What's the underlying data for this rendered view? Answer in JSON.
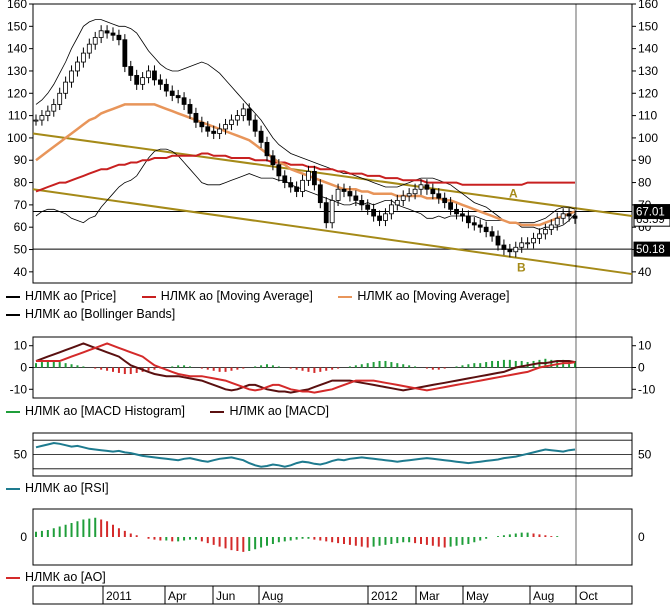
{
  "chart_data": [
    {
      "type": "candlestick",
      "panel": "price",
      "ylim": [
        35,
        160
      ],
      "ticks": [
        40,
        50,
        60,
        70,
        80,
        90,
        100,
        110,
        120,
        130,
        140,
        150,
        160
      ],
      "tick_labels": [
        "40",
        "50",
        "60",
        "70",
        "80",
        "90",
        "100",
        "110",
        "120",
        "130",
        "140",
        "150",
        "160"
      ],
      "last_values": {
        "price": "63.59",
        "ma_fast_label": "67.01",
        "level": "50.18"
      },
      "horizontal_levels": [
        67.01,
        50.18
      ],
      "trendline_annotations": [
        {
          "label": "A",
          "color": "#a58a18"
        },
        {
          "label": "B",
          "color": "#a58a18"
        }
      ],
      "series": [
        {
          "name": "НЛМК ао [Price]",
          "color": "#000000",
          "values": [
            108,
            110,
            112,
            115,
            120,
            125,
            130,
            134,
            138,
            142,
            145,
            148,
            147,
            146,
            144,
            132,
            128,
            124,
            127,
            130,
            126,
            124,
            121,
            119,
            118,
            115,
            111,
            107,
            105,
            103,
            102,
            104,
            106,
            108,
            110,
            113,
            108,
            103,
            98,
            92,
            88,
            83,
            80,
            78,
            76,
            81,
            85,
            79,
            71,
            62,
            72,
            77,
            76,
            74,
            72,
            70,
            68,
            65,
            63,
            66,
            70,
            72,
            74,
            75,
            77,
            79,
            77,
            75,
            73,
            71,
            68,
            66,
            65,
            62,
            61,
            60,
            58,
            56,
            52,
            50,
            49,
            51,
            53,
            53,
            55,
            57,
            59,
            61,
            64,
            66,
            65,
            64
          ]
        },
        {
          "name": "НЛМК ао [Moving Average]",
          "color": "#c82020",
          "values": [
            76,
            77,
            78,
            79,
            80,
            80,
            81,
            82,
            83,
            84,
            85,
            86,
            86,
            87,
            88,
            88,
            89,
            89,
            90,
            90,
            91,
            91,
            91,
            92,
            92,
            92,
            92,
            92,
            93,
            93,
            92,
            92,
            92,
            91,
            91,
            91,
            91,
            90,
            90,
            90,
            89,
            89,
            89,
            88,
            88,
            88,
            87,
            87,
            86,
            86,
            86,
            85,
            85,
            84,
            84,
            84,
            83,
            83,
            83,
            82,
            82,
            82,
            81,
            81,
            81,
            81,
            80,
            80,
            80,
            80,
            80,
            80,
            79,
            79,
            79,
            79,
            79,
            79,
            79,
            79,
            79,
            79,
            79,
            80,
            80,
            80,
            80,
            80,
            80,
            80,
            80,
            80
          ]
        },
        {
          "name": "НЛМК ао [Moving Average]",
          "color": "#e8955a",
          "values": [
            90,
            92,
            94,
            96,
            98,
            100,
            102,
            104,
            106,
            108,
            109,
            111,
            112,
            113,
            114,
            115,
            115,
            115,
            115,
            115,
            115,
            114,
            113,
            112,
            111,
            110,
            109,
            108,
            107,
            106,
            105,
            104,
            103,
            102,
            101,
            100,
            99,
            97,
            95,
            93,
            91,
            89,
            88,
            86,
            85,
            84,
            83,
            82,
            81,
            80,
            79,
            78,
            77,
            77,
            77,
            76,
            76,
            75,
            75,
            75,
            75,
            74,
            74,
            74,
            74,
            74,
            73,
            73,
            73,
            72,
            72,
            71,
            70,
            69,
            68,
            67,
            66,
            65,
            64,
            63,
            62,
            62,
            61,
            61,
            61,
            61,
            62,
            63,
            64,
            65,
            66,
            67
          ]
        },
        {
          "name": "НЛМК ао [Bollinger Bands]",
          "color": "#000000",
          "values": [
            115,
            117,
            120,
            124,
            129,
            134,
            140,
            145,
            150,
            152,
            153,
            153,
            152,
            151,
            150,
            150,
            149,
            147,
            143,
            139,
            136,
            133,
            131,
            130,
            130,
            131,
            132,
            133,
            134,
            133,
            131,
            129,
            126,
            123,
            120,
            117,
            114,
            111,
            108,
            104,
            100,
            97,
            95,
            93,
            92,
            91,
            90,
            89,
            88,
            87,
            86,
            85,
            84,
            84,
            83,
            82,
            81,
            80,
            79,
            78,
            78,
            78,
            79,
            80,
            81,
            82,
            82,
            82,
            81,
            80,
            79,
            77,
            75,
            73,
            71,
            70,
            69,
            67,
            65,
            63,
            62,
            62,
            62,
            62,
            62,
            63,
            64,
            66,
            68,
            69,
            69,
            68
          ]
        }
      ]
    },
    {
      "type": "bar+line",
      "panel": "macd",
      "ylim": [
        -14,
        14
      ],
      "tick_labels": [
        "10",
        "0",
        "-10"
      ],
      "series": [
        {
          "name": "НЛМК ао [MACD Histogram]",
          "color": "#1f9e3a",
          "neg_color": "#d42a2a",
          "values": [
            2,
            2.5,
            3,
            3,
            2.5,
            2,
            1.5,
            1,
            0.5,
            0,
            -0.5,
            -1,
            -1.5,
            -2,
            -2.5,
            -3,
            -3,
            -2.5,
            -2,
            -1.5,
            -1,
            -0.5,
            0,
            0.5,
            1,
            1,
            0.5,
            0,
            -0.5,
            -1,
            -1.5,
            -2,
            -2,
            -1.5,
            -1,
            -0.5,
            0,
            0.5,
            1,
            1.5,
            1,
            0.5,
            0,
            -0.5,
            -1,
            -1.5,
            -2,
            -2.5,
            -2,
            -1.5,
            -1,
            -0.5,
            0,
            0.5,
            1,
            1.5,
            2,
            2.5,
            3,
            3,
            2.5,
            2,
            1.5,
            1,
            0.5,
            0,
            -0.5,
            -1,
            -1,
            -0.5,
            0,
            0.5,
            1,
            1.5,
            2,
            2,
            2.5,
            3,
            3,
            3.5,
            3.5,
            3,
            3,
            2.5,
            3,
            3.5,
            4,
            3.5,
            3,
            3.5,
            3,
            3
          ]
        },
        {
          "name": "НЛМК ао [MACD]",
          "color": "#5a1010",
          "values": [
            3,
            4,
            5,
            6,
            7,
            8,
            9,
            10,
            11,
            10,
            9,
            8,
            7,
            6,
            5,
            3,
            1,
            0,
            -1,
            -2,
            -3,
            -3.5,
            -4,
            -4,
            -4,
            -4.5,
            -5,
            -5.5,
            -6,
            -7,
            -8,
            -9,
            -10,
            -10.5,
            -10,
            -9,
            -8,
            -8,
            -9,
            -10,
            -10.5,
            -11,
            -11,
            -11.5,
            -11,
            -10.5,
            -10,
            -9,
            -8,
            -7,
            -6,
            -6,
            -6,
            -6,
            -6.5,
            -7,
            -7.5,
            -8,
            -8.5,
            -9,
            -9.5,
            -10,
            -10.5,
            -10,
            -9.5,
            -9,
            -8.5,
            -8,
            -7.5,
            -7,
            -6.5,
            -6,
            -5.5,
            -5,
            -4.5,
            -4,
            -3.5,
            -3,
            -2.5,
            -2,
            -1,
            0,
            0.5,
            1,
            1.5,
            2,
            2,
            2.5,
            3,
            3,
            3,
            2.5
          ]
        }
      ]
    },
    {
      "type": "line",
      "panel": "rsi",
      "ylim": [
        20,
        80
      ],
      "tick_labels": [
        "50"
      ],
      "series": [
        {
          "name": "НЛМК ао [RSI]",
          "color": "#1e7b8f",
          "values": [
            60,
            62,
            64,
            66,
            65,
            63,
            61,
            62,
            60,
            58,
            57,
            56,
            55,
            54,
            55,
            53,
            52,
            50,
            48,
            47,
            46,
            45,
            44,
            43,
            42,
            44,
            45,
            43,
            41,
            40,
            42,
            44,
            45,
            46,
            44,
            42,
            38,
            35,
            33,
            34,
            36,
            35,
            33,
            35,
            38,
            40,
            39,
            37,
            36,
            38,
            41,
            43,
            42,
            44,
            45,
            46,
            45,
            44,
            43,
            42,
            41,
            40,
            41,
            42,
            43,
            44,
            45,
            44,
            43,
            42,
            41,
            40,
            39,
            38,
            39,
            40,
            41,
            42,
            43,
            45,
            46,
            47,
            49,
            51,
            53,
            55,
            57,
            56,
            55,
            54,
            56,
            57
          ]
        }
      ]
    },
    {
      "type": "bar",
      "panel": "ao",
      "ylim": [
        -32,
        32
      ],
      "tick_labels": [
        "0"
      ],
      "series": [
        {
          "name": "НЛМК ао [AO]",
          "color": "#1f9e3a",
          "neg_color": "#d42a2a",
          "values": [
            6,
            7,
            8,
            10,
            12,
            14,
            16,
            18,
            20,
            21,
            22,
            20,
            18,
            14,
            10,
            7,
            4,
            2,
            0,
            -2,
            -3,
            -4,
            -4,
            -5,
            -5,
            -4,
            -3,
            -3,
            -5,
            -7,
            -9,
            -11,
            -13,
            -15,
            -16,
            -17,
            -16,
            -14,
            -12,
            -10,
            -8,
            -6,
            -5,
            -4,
            -3,
            -2,
            -2,
            -3,
            -4,
            -5,
            -6,
            -7,
            -8,
            -9,
            -10,
            -11,
            -12,
            -11,
            -10,
            -9,
            -8,
            -7,
            -6,
            -6,
            -7,
            -8,
            -9,
            -10,
            -11,
            -12,
            -11,
            -10,
            -9,
            -8,
            -6,
            -4,
            -2,
            0,
            1,
            2,
            3,
            4,
            5,
            5,
            4,
            3,
            2,
            1,
            1,
            0,
            0,
            0
          ]
        }
      ]
    }
  ],
  "time_axis": {
    "labels": [
      "2011",
      "Apr",
      "Jun",
      "Aug",
      "2012",
      "Mar",
      "May",
      "Aug",
      "Oct"
    ]
  },
  "legends": {
    "price": [
      "НЛМК ао [Price]",
      "НЛМК ао [Moving Average]",
      "НЛМК ао [Moving Average]",
      "НЛМК ао [Bollinger Bands]"
    ],
    "macd": [
      "НЛМК ао [MACD Histogram]",
      "НЛМК ао [MACD]"
    ],
    "rsi": [
      "НЛМК ао [RSI]"
    ],
    "ao": [
      "НЛМК ао [AO]"
    ]
  },
  "colors": {
    "price": "#000000",
    "ma_red": "#c82020",
    "ma_orange": "#e8955a",
    "bollinger": "#000000",
    "trendline": "#a58a18",
    "macd_hist_pos": "#1f9e3a",
    "macd_hist_neg": "#d42a2a",
    "macd_line": "#5a1010",
    "rsi": "#1e7b8f",
    "ao_pos": "#1f9e3a",
    "ao_neg": "#d42a2a"
  }
}
